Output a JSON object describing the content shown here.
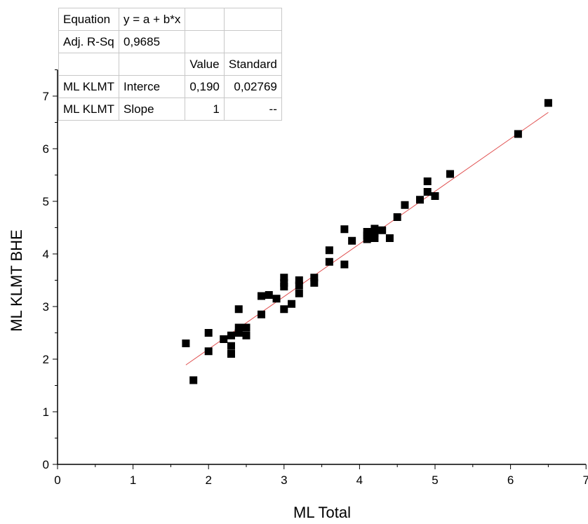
{
  "chart_data": {
    "type": "scatter",
    "xlabel": "ML Total",
    "ylabel": "ML KLMT BHE",
    "xlim": [
      0,
      7
    ],
    "ylim": [
      0,
      7.5
    ],
    "xticks": [
      "0",
      "1",
      "2",
      "3",
      "4",
      "5",
      "6",
      "7"
    ],
    "yticks": [
      "0",
      "1",
      "2",
      "3",
      "4",
      "5",
      "6",
      "7"
    ],
    "grid": false,
    "marker": "square",
    "marker_color": "#000000",
    "fit_color": "#e05050",
    "points": [
      [
        1.7,
        2.3
      ],
      [
        1.8,
        1.6
      ],
      [
        2.0,
        2.5
      ],
      [
        2.0,
        2.15
      ],
      [
        2.2,
        2.38
      ],
      [
        2.3,
        2.25
      ],
      [
        2.3,
        2.1
      ],
      [
        2.3,
        2.45
      ],
      [
        2.4,
        2.95
      ],
      [
        2.4,
        2.6
      ],
      [
        2.4,
        2.5
      ],
      [
        2.5,
        2.6
      ],
      [
        2.5,
        2.45
      ],
      [
        2.7,
        3.2
      ],
      [
        2.7,
        2.85
      ],
      [
        2.8,
        3.22
      ],
      [
        2.9,
        3.15
      ],
      [
        3.0,
        3.55
      ],
      [
        3.0,
        3.45
      ],
      [
        3.0,
        3.38
      ],
      [
        3.0,
        2.95
      ],
      [
        3.1,
        3.05
      ],
      [
        3.2,
        3.5
      ],
      [
        3.2,
        3.4
      ],
      [
        3.2,
        3.25
      ],
      [
        3.4,
        3.55
      ],
      [
        3.4,
        3.45
      ],
      [
        3.6,
        4.07
      ],
      [
        3.6,
        3.85
      ],
      [
        3.8,
        4.47
      ],
      [
        3.8,
        3.8
      ],
      [
        3.9,
        4.25
      ],
      [
        4.1,
        4.42
      ],
      [
        4.1,
        4.35
      ],
      [
        4.1,
        4.28
      ],
      [
        4.2,
        4.48
      ],
      [
        4.2,
        4.4
      ],
      [
        4.2,
        4.3
      ],
      [
        4.3,
        4.45
      ],
      [
        4.4,
        4.3
      ],
      [
        4.5,
        4.7
      ],
      [
        4.6,
        4.93
      ],
      [
        4.8,
        5.03
      ],
      [
        4.9,
        5.38
      ],
      [
        4.9,
        5.18
      ],
      [
        5.0,
        5.1
      ],
      [
        5.2,
        5.52
      ],
      [
        6.1,
        6.28
      ],
      [
        6.5,
        6.87
      ]
    ],
    "fit": {
      "intercept": 0.19,
      "slope": 1.0,
      "x_range": [
        1.7,
        6.5
      ]
    }
  },
  "fit_table": {
    "rows": [
      [
        "Equation",
        "y = a + b*x",
        "",
        ""
      ],
      [
        "Adj. R-Sq",
        "0,9685",
        "",
        ""
      ],
      [
        "",
        "",
        "Value",
        "Standard"
      ],
      [
        "ML KLMT",
        "Interce",
        "0,190",
        "0,02769"
      ],
      [
        "ML KLMT",
        "Slope",
        "1",
        "--"
      ]
    ]
  }
}
